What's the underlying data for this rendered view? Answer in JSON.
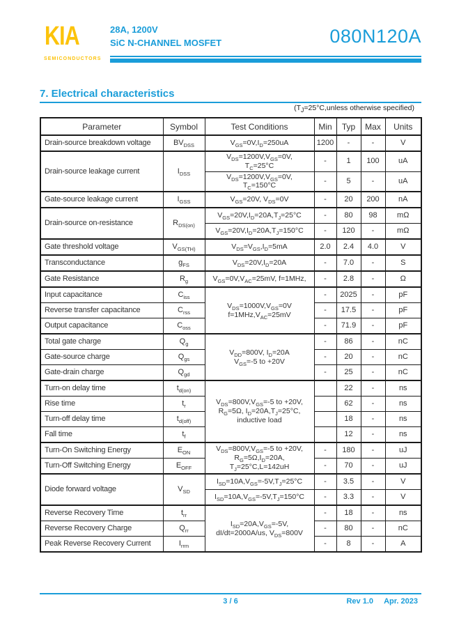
{
  "header": {
    "logo": "KIA",
    "logo_sub": "SEMICONDUCTORS",
    "rating": "28A, 1200V",
    "device": "SiC N-CHANNEL MOSFET",
    "part_number": "080N120A"
  },
  "section": {
    "title": "7. Electrical characteristics",
    "note": "(T_{J}=25°C,unless otherwise specified)"
  },
  "table": {
    "headers": [
      "Parameter",
      "Symbol",
      "Test Conditions",
      "Min",
      "Typ",
      "Max",
      "Units"
    ],
    "rows": [
      {
        "group": true,
        "param": "Drain-source breakdown voltage",
        "symbol": "BV_{DSS}",
        "cond": [
          "V_{GS}=0V,I_{D}=250uA"
        ],
        "min": "1200",
        "typ": "-",
        "max": "-",
        "units": "V"
      },
      {
        "group": true,
        "param": "Drain-source leakage current",
        "param_span": 2,
        "symbol": "I_{DSS}",
        "symbol_span": 2,
        "cond": [
          "V_{DS}=1200V,V_{GS}=0V,",
          "T_{C}=25°C"
        ],
        "min": "-",
        "typ": "1",
        "max": "100",
        "units": "uA"
      },
      {
        "cond": [
          "V_{DS}=1200V,V_{GS}=0V,",
          "T_{C}=150°C"
        ],
        "min": "-",
        "typ": "5",
        "max": "-",
        "units": "uA"
      },
      {
        "group": true,
        "param": "Gate-source leakage current",
        "symbol": "I_{GSS}",
        "cond": [
          "V_{GS}=20V, V_{DS}=0V"
        ],
        "min": "-",
        "typ": "20",
        "max": "200",
        "units": "nA"
      },
      {
        "group": true,
        "param": "Drain-source on-resistance",
        "param_span": 2,
        "symbol": "R_{DS(on)}",
        "symbol_span": 2,
        "cond": [
          "V_{GS}=20V,I_{D}=20A,T_{J}=25°C"
        ],
        "min": "-",
        "typ": "80",
        "max": "98",
        "units": "mΩ"
      },
      {
        "cond": [
          "V_{GS}=20V,I_{D}=20A,T_{J}=150°C"
        ],
        "min": "-",
        "typ": "120",
        "max": "-",
        "units": "mΩ"
      },
      {
        "group": true,
        "param": "Gate threshold voltage",
        "symbol": "V_{GS(TH)}",
        "cond": [
          "V_{DS}=V_{GS},I_{D}=5mA"
        ],
        "min": "2.0",
        "typ": "2.4",
        "max": "4.0",
        "units": "V"
      },
      {
        "group": true,
        "param": "Transconductance",
        "symbol": "g_{FS}",
        "cond": [
          "V_{DS}=20V,I_{D}=20A"
        ],
        "min": "-",
        "typ": "7.0",
        "max": "-",
        "units": "S"
      },
      {
        "group": true,
        "param": "Gate Resistance",
        "symbol": "R_{g}",
        "cond": [
          "V_{GS}=0V,V_{AC}=25mV, f=1MHz,"
        ],
        "min": "-",
        "typ": "2.8",
        "max": "-",
        "units": "Ω"
      },
      {
        "group": true,
        "param": "Input capacitance",
        "symbol": "C_{iss}",
        "cond": [
          "V_{DS}=1000V,V_{GS}=0V",
          "f=1MHz,V_{AC}=25mV"
        ],
        "cond_span": 3,
        "min": "-",
        "typ": "2025",
        "max": "-",
        "units": "pF"
      },
      {
        "param": "Reverse transfer capacitance",
        "symbol": "C_{rss}",
        "min": "-",
        "typ": "17.5",
        "max": "-",
        "units": "pF"
      },
      {
        "param": "Output capacitance",
        "symbol": "C_{oss}",
        "min": "-",
        "typ": "71.9",
        "max": "-",
        "units": "pF"
      },
      {
        "group": true,
        "param": "Total gate charge",
        "symbol": "Q_{g}",
        "cond": [
          "V_{DD}=800V, I_{D}=20A",
          "V_{GS}=-5 to +20V"
        ],
        "cond_span": 3,
        "min": "-",
        "typ": "86",
        "max": "-",
        "units": "nC"
      },
      {
        "param": "Gate-source charge",
        "symbol": "Q_{gs}",
        "min": "-",
        "typ": "20",
        "max": "-",
        "units": "nC"
      },
      {
        "param": "Gate-drain charge",
        "symbol": "Q_{gd}",
        "min": "-",
        "typ": "25",
        "max": "-",
        "units": "nC"
      },
      {
        "group": true,
        "param": "Turn-on delay time",
        "symbol": "t_{d(on)}",
        "cond": [
          "V_{DS}=800V,V_{GS}=-5 to +20V,",
          "R_{G}=5Ω, I_{D}=20A,T_{J}=25°C,",
          "inductive load"
        ],
        "cond_span": 4,
        "min": "",
        "typ": "22",
        "max": "-",
        "units": "ns"
      },
      {
        "param": "Rise time",
        "symbol": "t_{r}",
        "min": "",
        "typ": "62",
        "max": "-",
        "units": "ns"
      },
      {
        "param": "Turn-off delay time",
        "symbol": "t_{d(off)}",
        "min": "",
        "typ": "18",
        "max": "-",
        "units": "ns"
      },
      {
        "param": "Fall time",
        "symbol": "t_{f}",
        "min": "",
        "typ": "12",
        "max": "-",
        "units": "ns"
      },
      {
        "group": true,
        "param": "Turn-On Switching Energy",
        "symbol": "E_{ON}",
        "cond": [
          "V_{DS}=800V,V_{GS}=-5 to +20V,",
          "R_{G}=5Ω,I_{D}=20A,",
          "T_{J}=25°C,L=142uH"
        ],
        "cond_span": 2,
        "min": "-",
        "typ": "180",
        "max": "-",
        "units": "uJ"
      },
      {
        "param": "Turn-Off Switching Energy",
        "symbol": "E_{OFF}",
        "min": "-",
        "typ": "70",
        "max": "-",
        "units": "uJ"
      },
      {
        "group": true,
        "param": "Diode forward voltage",
        "param_span": 2,
        "symbol": "V_{SD}",
        "symbol_span": 2,
        "cond": [
          "I_{SD}=10A,V_{GS}=-5V,T_{J}=25°C"
        ],
        "min": "-",
        "typ": "3.5",
        "max": "-",
        "units": "V"
      },
      {
        "cond": [
          "I_{SD}=10A,V_{GS}=-5V,T_{J}=150°C"
        ],
        "min": "-",
        "typ": "3.3",
        "max": "-",
        "units": "V"
      },
      {
        "group": true,
        "param": "Reverse Recovery Time",
        "symbol": "t_{rr}",
        "cond": [
          "I_{SD}=20A,V_{GS}=-5V,",
          "dI/dt=2000A/us, V_{DS}=800V"
        ],
        "cond_span": 3,
        "min": "-",
        "typ": "18",
        "max": "-",
        "units": "ns"
      },
      {
        "param": "Reverse Recovery Charge",
        "symbol": "Q_{rr}",
        "min": "-",
        "typ": "80",
        "max": "-",
        "units": "nC"
      },
      {
        "param": "Peak Reverse Recovery Current",
        "symbol": "I_{rrm}",
        "min": "-",
        "typ": "8",
        "max": "-",
        "units": "A"
      }
    ]
  },
  "footer": {
    "page_indicator": "3 / 6",
    "revision": "Rev 1.0",
    "date": "Apr. 2023"
  },
  "colors": {
    "accent_blue": "#1a9dd9",
    "brand_yellow": "#fcc30b"
  }
}
